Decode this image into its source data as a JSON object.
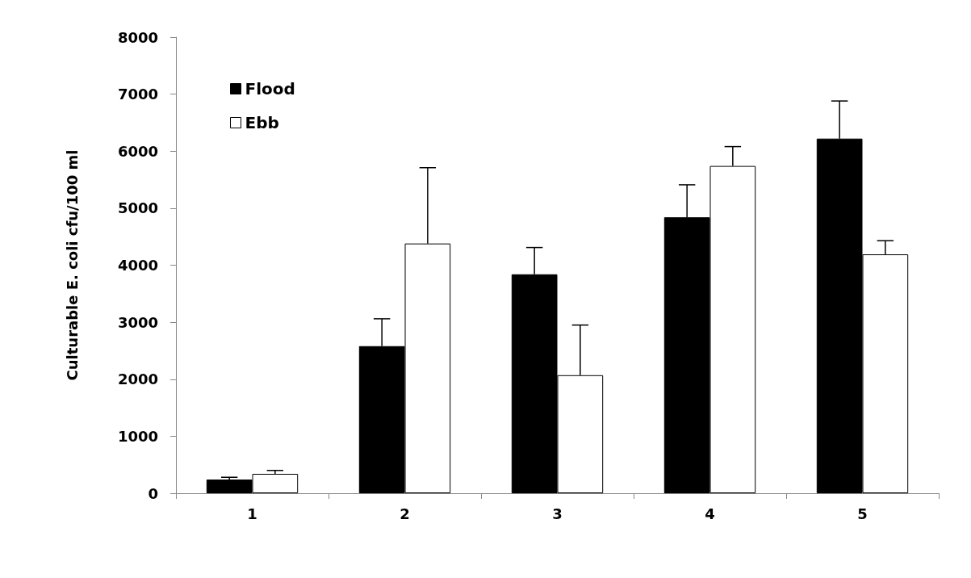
{
  "chart_data": {
    "type": "bar",
    "ylabel": "Culturable E. coli cfu/100 ml",
    "categories": [
      "1",
      "2",
      "3",
      "4",
      "5"
    ],
    "series": [
      {
        "name": "Flood",
        "color": "#000000",
        "values": [
          240,
          2580,
          3840,
          4840,
          6220
        ],
        "errors": [
          [
            240,
            280
          ],
          [
            2580,
            3060
          ],
          [
            3840,
            4310
          ],
          [
            4840,
            5410
          ],
          [
            6220,
            6880
          ]
        ]
      },
      {
        "name": "Ebb",
        "color": "#ffffff",
        "values": [
          340,
          4380,
          2070,
          5740,
          4190
        ],
        "errors": [
          [
            340,
            400
          ],
          [
            4380,
            5710
          ],
          [
            2070,
            2950
          ],
          [
            5740,
            6080
          ],
          [
            4190,
            4430
          ]
        ]
      }
    ],
    "ylim": [
      0,
      8000
    ],
    "yticks": [
      0,
      1000,
      2000,
      3000,
      4000,
      5000,
      6000,
      7000,
      8000
    ],
    "grid": false,
    "legend": "top left"
  }
}
